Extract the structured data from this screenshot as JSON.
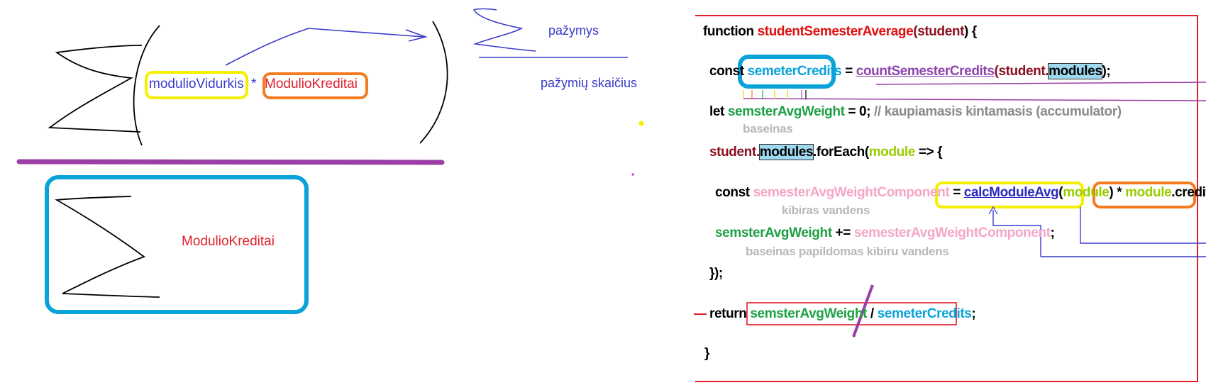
{
  "formula": {
    "term_module_avg": "modulioVidurkis",
    "operator": "*",
    "term_module_credits": "ModulioKreditai",
    "denominator": "ModulioKreditai"
  },
  "simple_formula": {
    "numerator": "pažymys",
    "denominator": "pažymių skaičius"
  },
  "code": {
    "line1": {
      "kw": "function ",
      "name": "studentSemesterAverage",
      "open": "(",
      "param": "student",
      "close": ") {"
    },
    "line2": {
      "kw": "const ",
      "var": "semeterCredits",
      "eq": " = ",
      "fn": "countSemesterCredits",
      "open": "(",
      "obj": "student",
      "dot": ".",
      "prop": "modules",
      "close": ");"
    },
    "line3": {
      "kw": "let ",
      "var": "semsterAvgWeight",
      "rest": " = 0; ",
      "comment": "// kaupiamasis kintamasis (accumulator)"
    },
    "note3": "baseinas",
    "line4": {
      "obj": "student",
      "dot": ".",
      "prop": "modules",
      "call": ".forEach(",
      "arg": "module",
      "arrow": " => {"
    },
    "line5": {
      "kw": "const ",
      "var": "semesterAvgWeightComponent",
      "eq": " = ",
      "fn": "calcModuleAvg",
      "open": "(",
      "arg": "module",
      "close": ")",
      "mul": " * ",
      "obj": "module",
      "prop": ".credits;"
    },
    "note5": "kibiras vandens",
    "line6": {
      "var": "semsterAvgWeight",
      "op": " += ",
      "comp": "semesterAvgWeightComponent",
      "end": ";"
    },
    "note6": "baseinas papildomas kibiru vandens",
    "line7": "});",
    "line8": {
      "kw": "return ",
      "num": "semsterAvgWeight",
      "slash": " / ",
      "den": "semeterCredits",
      "end": ";"
    },
    "line9": "}"
  },
  "colors": {
    "frame": "#e0202a",
    "cyan": "#0aa3d9",
    "yellow": "#f5f000",
    "orange": "#f47a20",
    "purple": "#9b3ea6",
    "blue_ink": "#3a3acc"
  }
}
